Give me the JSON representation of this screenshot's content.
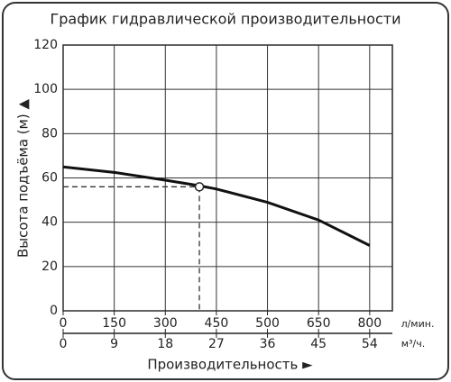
{
  "chart_data": {
    "type": "line",
    "title": "График гидравлической производительности",
    "ylabel": "Высота подъёма (м) ▲",
    "xlabel": "Производительность ►",
    "x_unit": "м³/ч.",
    "x2_unit": "л/мин.",
    "xlim": [
      0,
      58
    ],
    "ylim": [
      0,
      120
    ],
    "xticks": [
      0,
      9,
      18,
      27,
      36,
      45,
      54
    ],
    "x2ticks": [
      {
        "value": 0,
        "label": "0"
      },
      {
        "value": 9,
        "label": "150"
      },
      {
        "value": 18,
        "label": "300"
      },
      {
        "value": 27,
        "label": "450"
      },
      {
        "value": 36,
        "label": "500"
      },
      {
        "value": 45,
        "label": "650"
      },
      {
        "value": 54,
        "label": "800"
      }
    ],
    "yticks": [
      0,
      20,
      40,
      60,
      80,
      100,
      120
    ],
    "grid": true,
    "color": "#111111",
    "x": [
      0,
      9,
      18,
      24,
      27,
      36,
      45,
      54
    ],
    "values": [
      65,
      62.5,
      59,
      56.5,
      55,
      49,
      41,
      29.5
    ],
    "operating_point": {
      "x": 24,
      "y": 56
    }
  }
}
